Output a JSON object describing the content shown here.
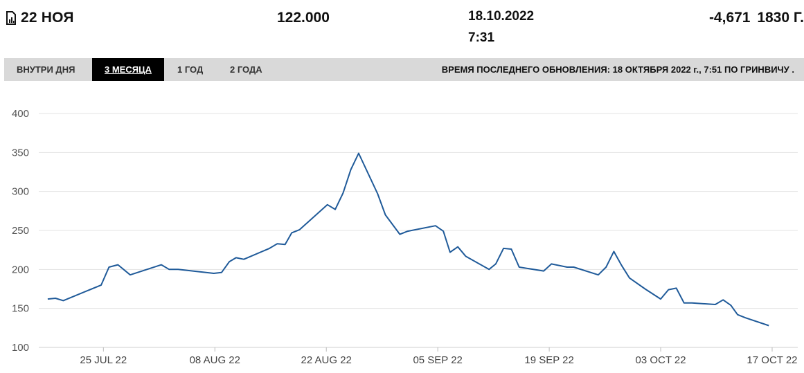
{
  "header": {
    "contract_label": "22 НОЯ",
    "price": "122.000",
    "date": "18.10.2022",
    "time": "7:31",
    "change_value": "-4,671",
    "change_pct": "1830 Г."
  },
  "tabs": [
    {
      "label": "ВНУТРИ ДНЯ",
      "active": false
    },
    {
      "label": "3 МЕСЯЦА",
      "active": true
    },
    {
      "label": "1 ГОД",
      "active": false
    },
    {
      "label": "2 ГОДА",
      "active": false
    }
  ],
  "last_updated": "ВРЕМЯ ПОСЛЕДНЕГО ОБНОВЛЕНИЯ: 18 ОКТЯБРЯ 2022 г., 7:51 ПО ГРИНВИЧУ .",
  "icons": {
    "contract": "chart-document-icon"
  },
  "colors": {
    "line": "#1f5a99",
    "grid": "#e3e3e3",
    "tabbar": "#d9d9d9",
    "active_tab": "#000000"
  },
  "chart_data": {
    "type": "line",
    "ylim": [
      100,
      400
    ],
    "yticks": [
      100,
      150,
      200,
      250,
      300,
      350,
      400
    ],
    "xlim": [
      -0.8,
      67.3
    ],
    "xtick_positions": [
      5,
      15,
      25,
      35,
      45,
      55,
      65
    ],
    "xtick_labels": [
      "25 JUL 22",
      "08 AUG 22",
      "22 AUG 22",
      "05 SEP 22",
      "19 SEP 22",
      "03 OCT 22",
      "17 OCT 22"
    ],
    "grid": true,
    "series": [
      {
        "x": [
          0,
          0.7,
          1.4,
          4.8,
          5.5,
          6.3,
          7.4,
          10.2,
          10.9,
          11.7,
          14.9,
          15.6,
          16.3,
          16.9,
          17.6,
          19.9,
          20.6,
          21.3,
          21.9,
          22.6,
          25.1,
          25.8,
          26.5,
          27.2,
          27.9,
          29.6,
          30.3,
          31.6,
          32.3,
          34.8,
          35.5,
          36.1,
          36.8,
          37.5,
          39.6,
          40.2,
          40.9,
          41.6,
          42.3,
          44.5,
          45.2,
          46.6,
          47.2,
          49.4,
          50.1,
          50.8,
          51.5,
          52.2,
          53.6,
          55.0,
          55.7,
          56.4,
          57.1,
          57.8,
          59.9,
          60.6,
          61.3,
          61.9,
          62.6,
          64.7
        ],
        "y": [
          162,
          163,
          160,
          180,
          203,
          206,
          193,
          206,
          200,
          200,
          195,
          196,
          210,
          215,
          213,
          227,
          233,
          232,
          247,
          251,
          283,
          277,
          298,
          328,
          349,
          297,
          270,
          245,
          249,
          256,
          249,
          222,
          229,
          217,
          200,
          207,
          227,
          226,
          203,
          198,
          207,
          203,
          203,
          193,
          203,
          223,
          205,
          189,
          175,
          162,
          174,
          176,
          157,
          157,
          155,
          161,
          154,
          142,
          138,
          128
        ]
      }
    ]
  }
}
